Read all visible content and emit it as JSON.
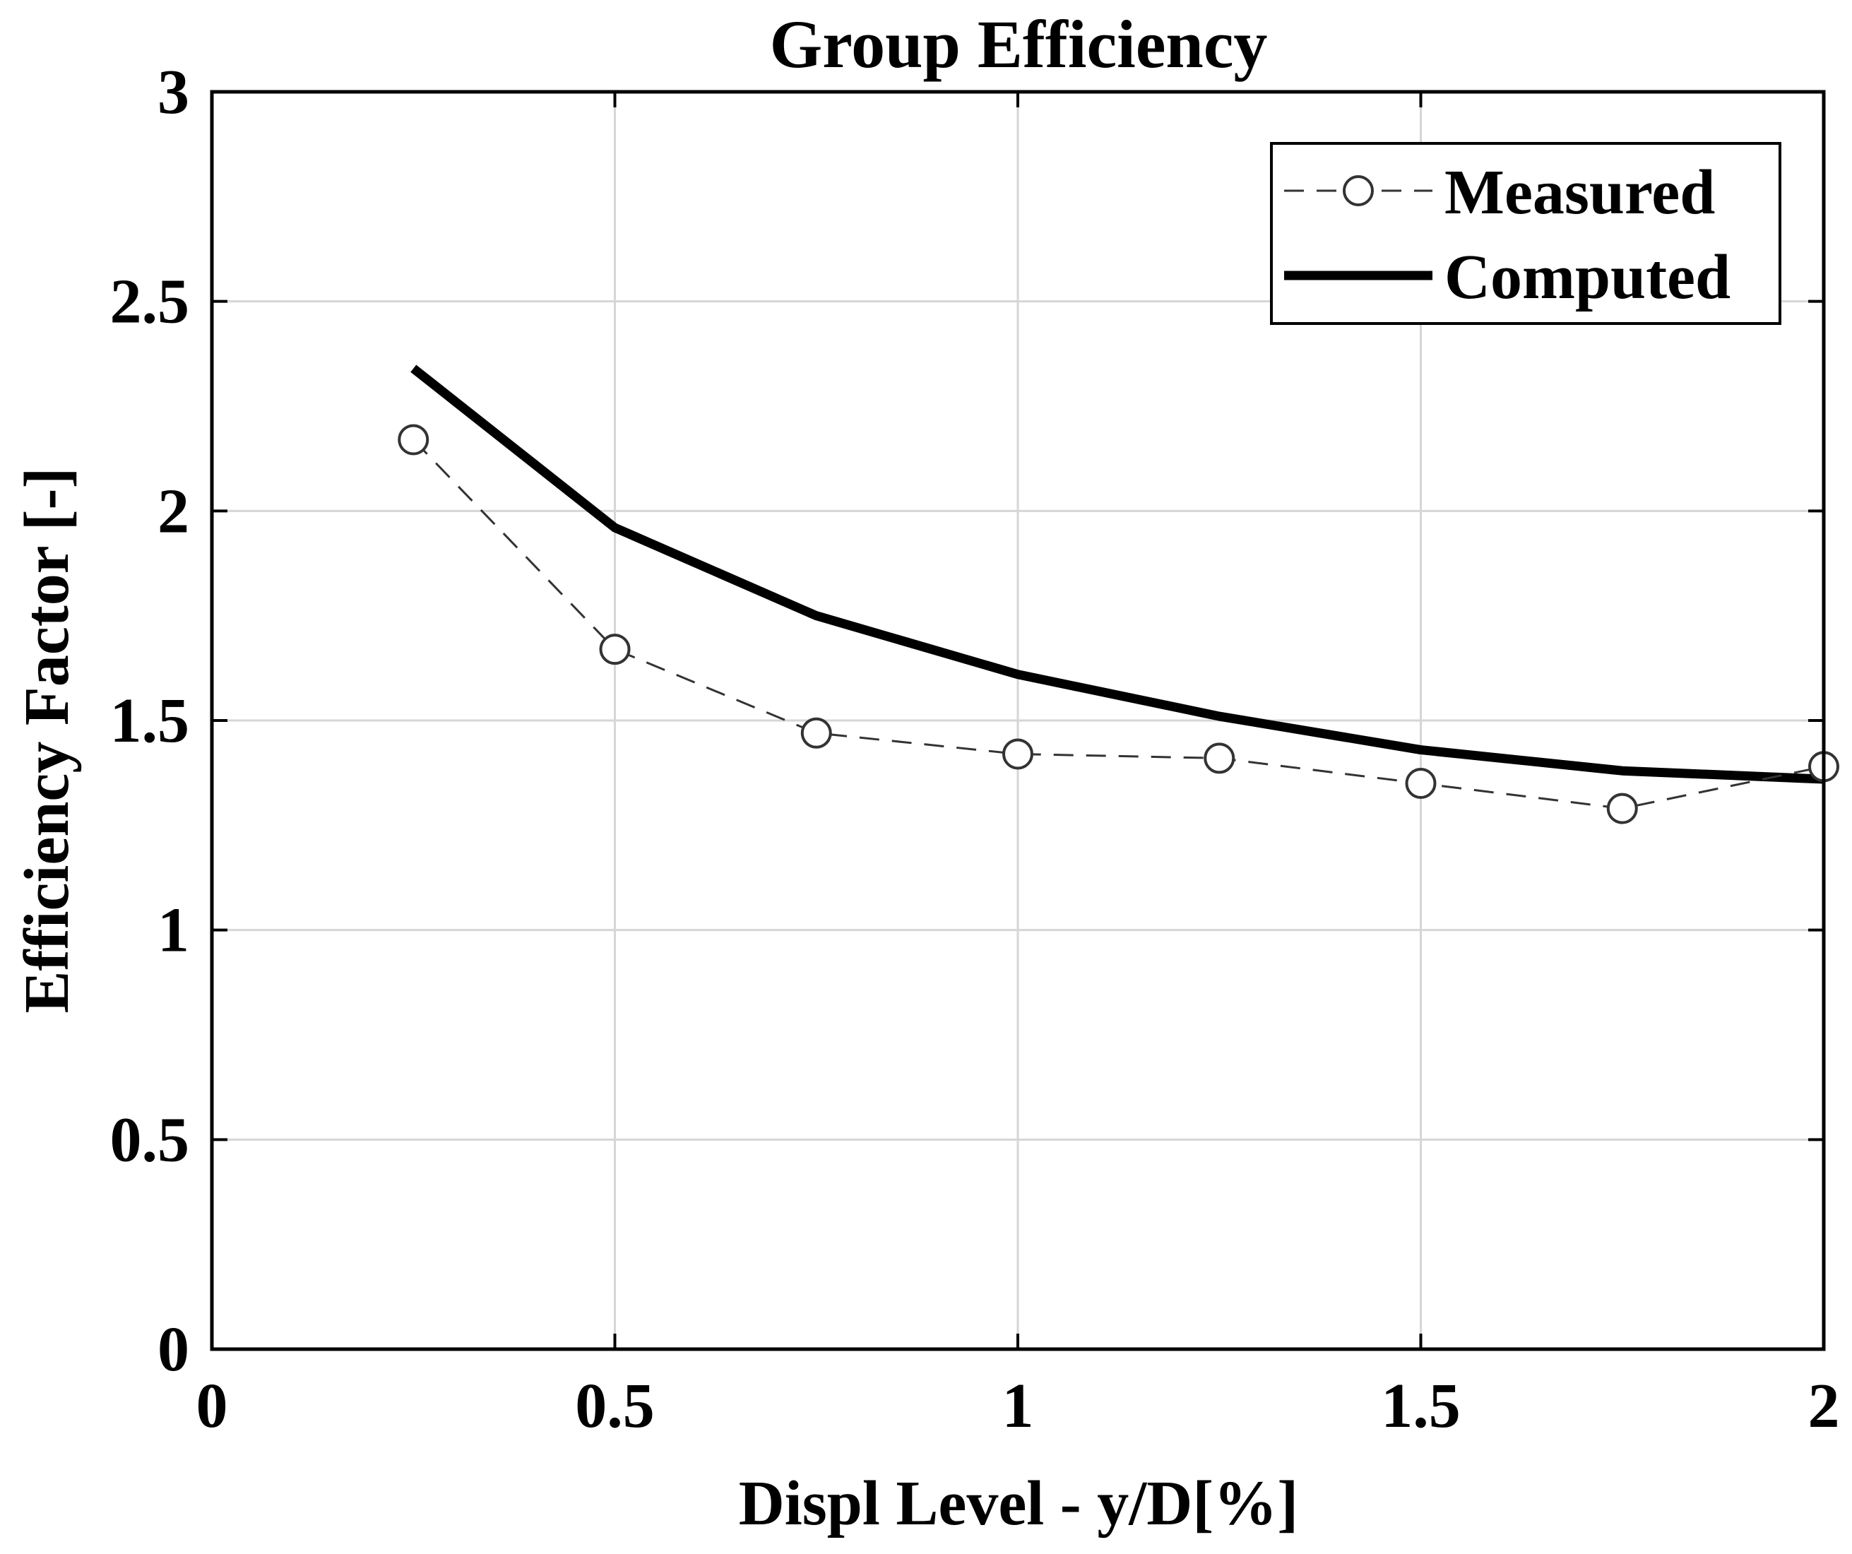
{
  "chart_data": {
    "type": "line",
    "title": "Group Efficiency",
    "xlabel": "Displ Level - y/D[%]",
    "ylabel": "Efficiency Factor [-]",
    "xlim": [
      0,
      2
    ],
    "ylim": [
      0,
      3
    ],
    "xticks": [
      0,
      0.5,
      1,
      1.5,
      2
    ],
    "xtick_labels": [
      "0",
      "0.5",
      "1",
      "1.5",
      "2"
    ],
    "yticks": [
      0,
      0.5,
      1,
      1.5,
      2,
      2.5,
      3
    ],
    "ytick_labels": [
      "0",
      "0.5",
      "1",
      "1.5",
      "2",
      "2.5",
      "3"
    ],
    "grid": true,
    "legend_position": "top-right",
    "series": [
      {
        "name": "Measured",
        "style": "dashed-circle-markers",
        "x": [
          0.25,
          0.5,
          0.75,
          1.0,
          1.25,
          1.5,
          1.75,
          2.0
        ],
        "values": [
          2.17,
          1.67,
          1.47,
          1.42,
          1.41,
          1.35,
          1.29,
          1.39
        ]
      },
      {
        "name": "Computed",
        "style": "solid-thick",
        "x": [
          0.25,
          0.5,
          0.75,
          1.0,
          1.25,
          1.5,
          1.75,
          2.0
        ],
        "values": [
          2.34,
          1.96,
          1.75,
          1.61,
          1.51,
          1.43,
          1.38,
          1.36
        ]
      }
    ]
  }
}
